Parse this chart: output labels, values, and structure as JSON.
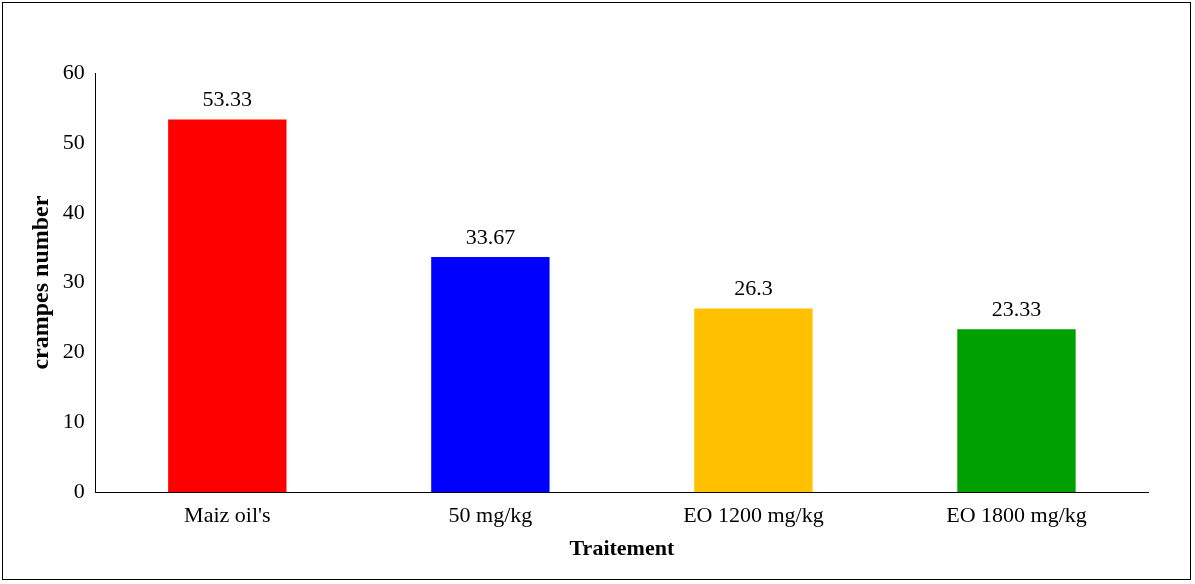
{
  "chart_data": {
    "type": "bar",
    "xlabel": "Traitement",
    "ylabel": "crampes number",
    "categories": [
      "Maiz oil's",
      "50 mg/kg",
      "EO 1200 mg/kg",
      "EO 1800 mg/kg"
    ],
    "values": [
      53.33,
      33.67,
      26.3,
      23.33
    ],
    "colors": [
      "#ff0000",
      "#0000ff",
      "#ffc000",
      "#00a000"
    ],
    "ylim": [
      0,
      60
    ],
    "yticks": [
      0,
      10,
      20,
      30,
      40,
      50,
      60
    ],
    "grid": false,
    "legend": false,
    "data_labels": true
  }
}
